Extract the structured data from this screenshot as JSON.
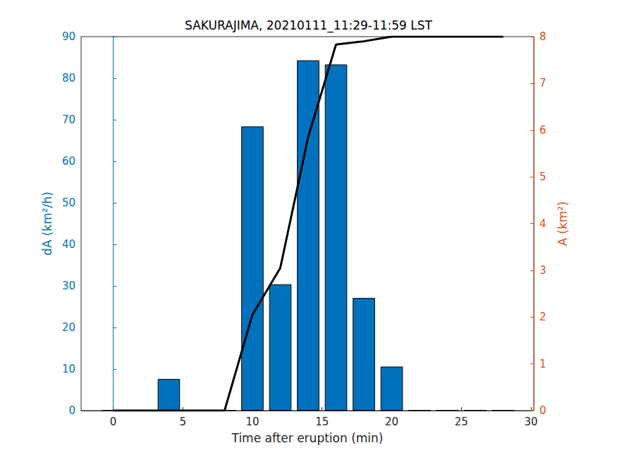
{
  "chart_data": {
    "type": "bar",
    "title": "SAKURAJIMA, 20210111_11:29-11:59 LST",
    "xlabel": "Time after eruption (min)",
    "ylabel": "dA (km²/h)",
    "y2label": "A (km²)",
    "x": [
      0,
      2,
      4,
      6,
      8,
      10,
      12,
      14,
      16,
      18,
      20,
      22,
      24,
      26,
      28
    ],
    "series": [
      {
        "type": "bar",
        "color": "#0072BD",
        "values": [
          0,
          0,
          7.6,
          0,
          0,
          68.4,
          30.4,
          84.3,
          83.3,
          27.1,
          10.6,
          0,
          0,
          0,
          0
        ]
      },
      {
        "type": "line",
        "color": "#000000",
        "axis": "y2",
        "values": [
          0,
          0,
          0,
          0,
          0,
          2.05,
          3.05,
          5.85,
          7.83,
          7.9,
          8.0,
          8.0,
          8.0,
          8.0,
          8.0
        ]
      }
    ],
    "xlim": [
      -2.3,
      30.2
    ],
    "xticks": [
      0,
      5,
      10,
      15,
      20,
      25,
      30
    ],
    "ylim": [
      0,
      90
    ],
    "yticks": [
      0,
      10,
      20,
      30,
      40,
      50,
      60,
      70,
      80,
      90
    ],
    "y2lim": [
      0,
      8
    ],
    "y2ticks": [
      0,
      1,
      2,
      3,
      4,
      5,
      6,
      7,
      8
    ],
    "grid": false
  }
}
